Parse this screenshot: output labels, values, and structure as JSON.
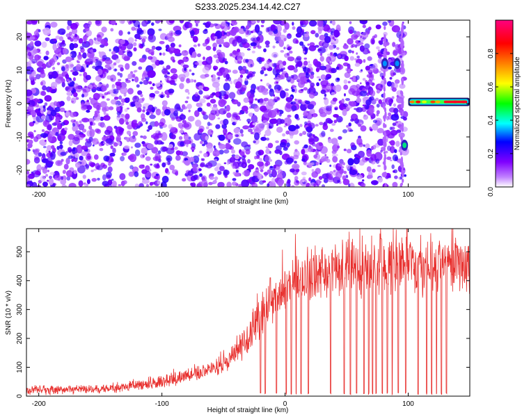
{
  "figure": {
    "title": "S233.2025.234.14.42.C27"
  },
  "chart_data": [
    {
      "type": "heatmap",
      "name": "spectrogram",
      "xlabel": "Height of straight line (km)",
      "ylabel": "Frequency (Hz)",
      "xlim": [
        -210,
        150
      ],
      "ylim": [
        -25,
        25
      ],
      "x_ticks": [
        -200,
        -100,
        0,
        100
      ],
      "x_tick_labels": [
        "-200",
        "-100",
        "0",
        "100"
      ],
      "y_ticks": [
        -20,
        -10,
        0,
        10,
        20
      ],
      "y_tick_labels": [
        "-20",
        "-10",
        "0",
        "10",
        "20"
      ],
      "background_noise": {
        "x_range": [
          -210,
          98
        ],
        "y_range": [
          -25,
          25
        ],
        "typical_amplitude": 0.15
      },
      "blank_band": {
        "x_range": [
          98,
          150
        ]
      },
      "features": [
        {
          "x": 81,
          "y": 12,
          "amplitude": 0.25,
          "note": "narrow burst"
        },
        {
          "x": 91,
          "y": 12,
          "amplitude": 0.3,
          "note": "narrow burst"
        },
        {
          "x": 97,
          "y": -12.5,
          "amplitude": 0.35,
          "note": "isolated point"
        },
        {
          "x_start": 100,
          "x_end": 150,
          "y": 0.5,
          "amplitude_peak": 0.85,
          "note": "persistent narrow-band signal"
        }
      ],
      "colorbar": {
        "label": "Normalized spectral amplitude",
        "range": [
          0,
          1
        ],
        "ticks": [
          0,
          0.2,
          0.4,
          0.6,
          0.8
        ],
        "tick_labels": [
          "0.0",
          "0.2",
          "0.4",
          "0.6",
          "0.8"
        ],
        "colormap_stops": [
          "#ffffff",
          "#8000ff",
          "#0000ff",
          "#00ffff",
          "#00ff00",
          "#ffff00",
          "#ff8000",
          "#ff0000",
          "#ff00a0"
        ]
      }
    },
    {
      "type": "line",
      "name": "snr",
      "xlabel": "Height of straight line (km)",
      "ylabel": "SNR (10 * v/v)",
      "xlim": [
        -210,
        150
      ],
      "ylim": [
        0,
        580
      ],
      "x_ticks": [
        -200,
        -100,
        0,
        100
      ],
      "x_tick_labels": [
        "-200",
        "-100",
        "0",
        "100"
      ],
      "y_ticks": [
        0,
        100,
        200,
        300,
        400,
        500
      ],
      "y_tick_labels": [
        "0",
        "100",
        "200",
        "300",
        "400",
        "500"
      ],
      "color": "#e8302e",
      "envelope": {
        "x": [
          -210,
          -150,
          -110,
          -90,
          -70,
          -50,
          -35,
          -25,
          -15,
          -5,
          5,
          15,
          30,
          45,
          60,
          80,
          100,
          120,
          150
        ],
        "y": [
          20,
          25,
          40,
          60,
          80,
          110,
          170,
          240,
          310,
          360,
          390,
          410,
          430,
          440,
          445,
          450,
          450,
          450,
          455
        ]
      },
      "noise_amplitude": [
        15,
        100
      ],
      "dropouts_x": [
        -20,
        -16,
        -12,
        -7,
        1,
        5,
        9,
        13,
        19,
        37,
        48,
        53,
        58,
        64,
        68,
        71,
        74,
        79,
        83,
        87,
        92,
        98,
        108,
        115,
        119,
        123,
        127,
        131
      ],
      "peaks": [
        {
          "x": -12,
          "y": 410
        },
        {
          "x": 78,
          "y": 545
        },
        {
          "x": 99,
          "y": 578
        },
        {
          "x": 140,
          "y": 520
        }
      ]
    }
  ]
}
